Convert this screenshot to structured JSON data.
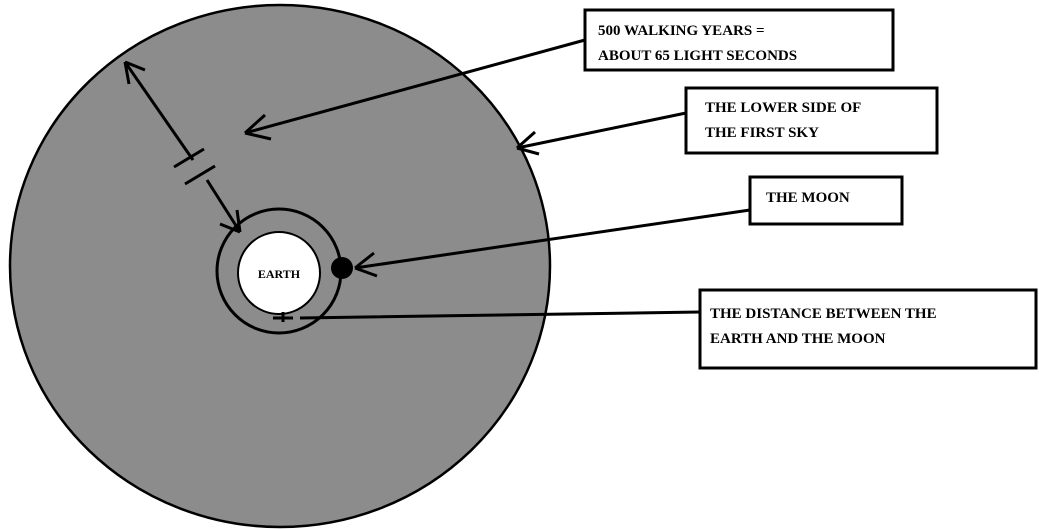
{
  "diagram": {
    "earth": "EARTH",
    "labels": [
      {
        "lines": [
          "500 WALKING YEARS =",
          "ABOUT 65 LIGHT SECONDS"
        ]
      },
      {
        "lines": [
          "THE LOWER SIDE OF",
          "THE FIRST SKY"
        ]
      },
      {
        "lines": [
          "THE MOON"
        ]
      },
      {
        "lines": [
          "THE DISTANCE BETWEEN THE",
          "EARTH AND THE MOON"
        ]
      }
    ]
  }
}
